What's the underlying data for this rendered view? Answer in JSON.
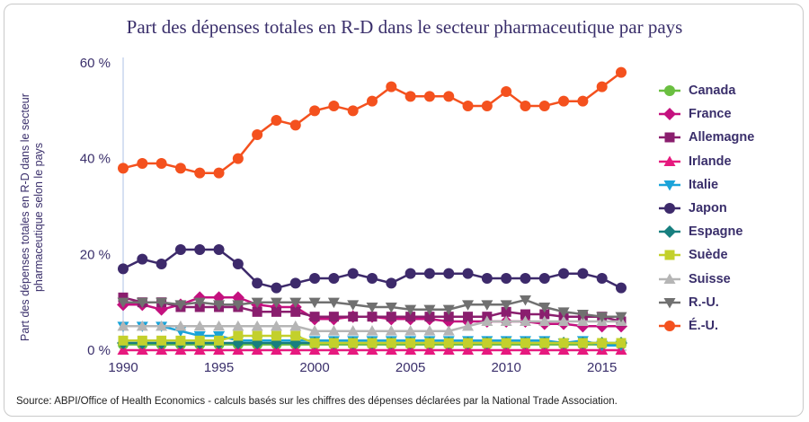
{
  "source": "Source: ABPI/Office of Health Economics - calculs basés sur les chiffres des dépenses déclarées par la National Trade Association.",
  "chart_data": {
    "type": "line",
    "title": "Part des dépenses totales en R-D dans le secteur pharmaceutique par pays",
    "xlabel": "",
    "ylabel": "Part des dépenses totales en R-D dans le secteur pharmaceutique selon le pays",
    "x": [
      1990,
      1991,
      1992,
      1993,
      1994,
      1995,
      1996,
      1997,
      1998,
      1999,
      2000,
      2001,
      2002,
      2003,
      2004,
      2005,
      2006,
      2007,
      2008,
      2009,
      2010,
      2011,
      2012,
      2013,
      2014,
      2015,
      2016
    ],
    "xticks": [
      1990,
      1995,
      2000,
      2005,
      2010,
      2015
    ],
    "xticklabels": [
      "1990",
      "1995",
      "2000",
      "2005",
      "2010",
      "2015"
    ],
    "xlim": [
      1990,
      2016
    ],
    "yticks": [
      0,
      20,
      40,
      60
    ],
    "yticklabels": [
      "0 %",
      "20 %",
      "40 %",
      "60 %"
    ],
    "ylim": [
      0,
      60
    ],
    "grid": false,
    "legend_position": "right",
    "series": [
      {
        "name": "Canada",
        "color": "#6abf40",
        "marker": "circle",
        "values": [
          1.2,
          1.2,
          1.2,
          1.2,
          1.2,
          1.2,
          1.2,
          1.2,
          1.2,
          1.2,
          1.2,
          1.2,
          1.2,
          1.2,
          1.2,
          1.2,
          1.2,
          1.2,
          1.2,
          1.2,
          1.2,
          1.2,
          1.2,
          1.2,
          1.2,
          1.2,
          1.2
        ]
      },
      {
        "name": "France",
        "color": "#c4117f",
        "marker": "diamond",
        "values": [
          9.5,
          9.5,
          8.5,
          9.5,
          11,
          11,
          11,
          9.5,
          9,
          9,
          6.5,
          6.5,
          7,
          7,
          6.5,
          6.5,
          6.5,
          6,
          6,
          6,
          6,
          6,
          5.5,
          5.5,
          5,
          5,
          5
        ]
      },
      {
        "name": "Allemagne",
        "color": "#8a1e6e",
        "marker": "square",
        "values": [
          11,
          10,
          10,
          9,
          9,
          9,
          9,
          8,
          8,
          8,
          7,
          7,
          7,
          7,
          7,
          7,
          7,
          7,
          7,
          7,
          8,
          7.5,
          7.5,
          7,
          7,
          7,
          6
        ]
      },
      {
        "name": "Irlande",
        "color": "#e6197e",
        "marker": "triangle-up",
        "values": [
          0,
          0,
          0,
          0,
          0,
          0,
          0,
          0,
          0,
          0,
          0,
          0,
          0,
          0,
          0,
          0,
          0,
          0,
          0,
          0,
          0,
          0,
          0,
          0,
          0,
          0,
          0
        ]
      },
      {
        "name": "Italie",
        "color": "#1aa3d9",
        "marker": "triangle-down",
        "values": [
          5,
          5,
          5,
          4,
          3,
          3,
          2,
          2,
          2,
          2,
          2,
          2,
          2,
          2,
          2,
          2,
          2,
          2,
          2,
          2,
          2,
          2,
          2,
          1.5,
          2,
          1,
          1
        ]
      },
      {
        "name": "Japon",
        "color": "#3d2a6b",
        "marker": "circle",
        "values": [
          17,
          19,
          18,
          21,
          21,
          21,
          18,
          14,
          13,
          14,
          15,
          15,
          16,
          15,
          14,
          16,
          16,
          16,
          16,
          15,
          15,
          15,
          15,
          16,
          16,
          15,
          13
        ]
      },
      {
        "name": "Espagne",
        "color": "#177f7f",
        "marker": "diamond",
        "values": [
          1.5,
          1.5,
          1.5,
          1.5,
          1.5,
          1.5,
          1.5,
          1.5,
          1.5,
          1.5,
          1.5,
          1.5,
          1.5,
          1.5,
          1.5,
          1.5,
          1.5,
          1.5,
          1.5,
          1.5,
          1.5,
          1.5,
          1.5,
          1.5,
          1.5,
          1.5,
          1.5
        ]
      },
      {
        "name": "Suède",
        "color": "#c3d02c",
        "marker": "square",
        "values": [
          2,
          2,
          2,
          2,
          2,
          2,
          3,
          3,
          3,
          3,
          1.5,
          1.5,
          1.5,
          1.5,
          1.5,
          1.5,
          1.5,
          1.5,
          1.5,
          1.5,
          1.5,
          1.5,
          1.5,
          1.5,
          1.5,
          1.5,
          1.5
        ]
      },
      {
        "name": "Suisse",
        "color": "#b5b5b5",
        "marker": "triangle-up",
        "values": [
          5,
          5,
          5,
          5,
          5,
          5,
          5,
          5,
          5,
          5,
          4,
          4,
          4,
          4,
          4,
          4,
          4,
          4,
          5,
          6,
          6,
          6,
          6,
          6,
          6,
          6,
          6
        ]
      },
      {
        "name": "R.-U.",
        "color": "#707070",
        "marker": "triangle-down",
        "values": [
          10,
          10,
          10,
          9.5,
          10,
          9.5,
          9.5,
          10,
          10,
          10,
          10,
          10,
          9.5,
          9,
          9,
          8.5,
          8.5,
          8.5,
          9.5,
          9.5,
          9.5,
          10.5,
          9,
          8,
          7.5,
          7,
          7
        ]
      },
      {
        "name": "É.-U.",
        "color": "#f4511e",
        "marker": "circle",
        "values": [
          38,
          39,
          39,
          38,
          37,
          37,
          40,
          45,
          48,
          47,
          50,
          51,
          50,
          52,
          55,
          53,
          53,
          53,
          51,
          51,
          54,
          51,
          51,
          52,
          52,
          55,
          58
        ]
      }
    ]
  }
}
